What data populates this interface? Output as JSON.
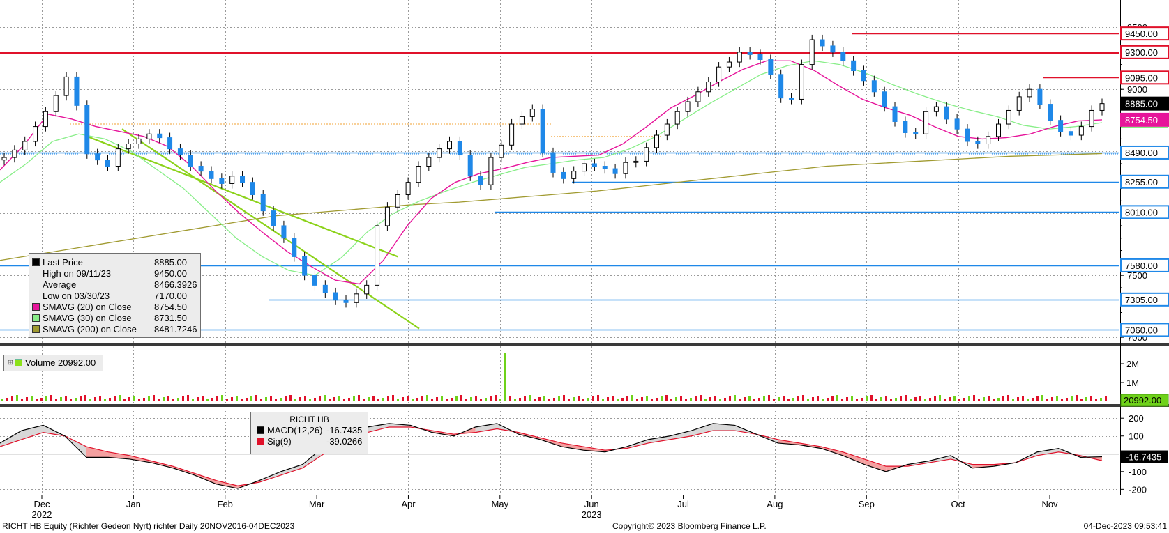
{
  "chart_data": {
    "type": "line",
    "title": "RICHT HB",
    "x_months": [
      "Dec",
      "Jan",
      "Feb",
      "Mar",
      "Apr",
      "May",
      "Jun",
      "Jul",
      "Aug",
      "Sep",
      "Oct",
      "Nov"
    ],
    "x_years": [
      "2022",
      "2023"
    ],
    "price": {
      "ylim": [
        6950,
        9580
      ],
      "yticks": [
        "9500",
        "9000",
        "8500",
        "8000",
        "7500",
        "7000"
      ],
      "last_price": 8885.0,
      "high": {
        "label": "High on 09/11/23",
        "value": 9450.0
      },
      "low": {
        "label": "Low on 03/30/23",
        "value": 7170.0
      },
      "average": 8466.3926,
      "closes": [
        8450,
        8510,
        8580,
        8700,
        8820,
        8950,
        9100,
        8870,
        8480,
        8430,
        8380,
        8520,
        8560,
        8600,
        8640,
        8610,
        8520,
        8470,
        8380,
        8340,
        8280,
        8240,
        8300,
        8250,
        8150,
        8020,
        7900,
        7800,
        7650,
        7500,
        7420,
        7360,
        7300,
        7280,
        7350,
        7420,
        7900,
        8050,
        8150,
        8250,
        8380,
        8450,
        8520,
        8580,
        8470,
        8300,
        8230,
        8450,
        8550,
        8720,
        8780,
        8840,
        8490,
        8330,
        8280,
        8340,
        8400,
        8380,
        8360,
        8320,
        8410,
        8420,
        8530,
        8630,
        8720,
        8820,
        8900,
        8980,
        9060,
        9180,
        9220,
        9300,
        9280,
        9240,
        9120,
        8930,
        8920,
        9200,
        9400,
        9350,
        9300,
        9230,
        9150,
        9070,
        8980,
        8860,
        8740,
        8650,
        8640,
        8820,
        8860,
        8760,
        8680,
        8580,
        8560,
        8620,
        8720,
        8830,
        8940,
        9000,
        8880,
        8750,
        8660,
        8630,
        8700,
        8830,
        8885
      ],
      "sma20": [
        8350,
        8550,
        8800,
        8760,
        8700,
        8660,
        8620,
        8540,
        8380,
        8180,
        8000,
        7840,
        7690,
        7570,
        7460,
        7430,
        7620,
        7900,
        8120,
        8250,
        8320,
        8360,
        8410,
        8450,
        8460,
        8470,
        8560,
        8700,
        8850,
        8950,
        9060,
        9160,
        9230,
        9230,
        9150,
        9030,
        8920,
        8850,
        8790,
        8700,
        8620,
        8600,
        8610,
        8640,
        8700,
        8745,
        8754.5
      ],
      "sma30": [
        8250,
        8400,
        8580,
        8640,
        8600,
        8500,
        8350,
        8200,
        8000,
        7800,
        7650,
        7540,
        7500,
        7640,
        7850,
        8000,
        8100,
        8180,
        8250,
        8310,
        8370,
        8400,
        8430,
        8450,
        8520,
        8620,
        8750,
        8880,
        9000,
        9120,
        9190,
        9230,
        9200,
        9130,
        9040,
        8960,
        8890,
        8830,
        8780,
        8710,
        8680,
        8700,
        8731.5
      ],
      "sma200": [
        7620,
        7680,
        7740,
        7800,
        7860,
        7920,
        7980,
        8010,
        8040,
        8070,
        8090,
        8120,
        8150,
        8180,
        8220,
        8260,
        8300,
        8340,
        8380,
        8400,
        8420,
        8440,
        8460,
        8470,
        8481.7
      ],
      "trendline_a": [
        [
          0,
          8620
        ],
        [
          1,
          7720
        ],
        [
          1.1,
          7650
        ]
      ],
      "trendline_b": [
        [
          0,
          8680
        ],
        [
          1,
          7330
        ],
        [
          1.2,
          7070
        ]
      ],
      "levels": [
        "9450.00",
        "9300.00",
        "9095.00",
        "8885.00",
        "8754.50",
        "8490.00",
        "8255.00",
        "8010.00",
        "7580.00",
        "7305.00",
        "7060.00"
      ],
      "colors": {
        "last": "#000000",
        "resistance": "#e0112a",
        "support": "#1f88e8",
        "sma20": "#e6149a",
        "sma30": "#88ee88",
        "sma200": "#a09a30",
        "trend": "#8cd21a",
        "up_candle": "#ffffff",
        "down_candle": "#1f88e8"
      }
    },
    "volume": {
      "label": "Volume",
      "value": "20992.00",
      "yticks": [
        "2M",
        "1M"
      ],
      "spike_month_index": 5
    },
    "macd": {
      "yticks": [
        "200",
        "100",
        "-100",
        "-200"
      ],
      "last": "-16.7435",
      "macd_line": [
        60,
        130,
        160,
        100,
        -20,
        -20,
        -30,
        -50,
        -80,
        -120,
        -170,
        -195,
        -150,
        -100,
        -60,
        40,
        110,
        150,
        170,
        160,
        120,
        100,
        150,
        170,
        110,
        80,
        40,
        20,
        10,
        40,
        80,
        100,
        130,
        170,
        160,
        110,
        60,
        50,
        30,
        -10,
        -60,
        -100,
        -60,
        -40,
        -10,
        -80,
        -70,
        -50,
        10,
        30,
        -20,
        -16.7
      ],
      "signal_line": [
        40,
        80,
        120,
        100,
        40,
        10,
        -10,
        -40,
        -70,
        -110,
        -150,
        -180,
        -160,
        -120,
        -80,
        0,
        70,
        120,
        150,
        150,
        130,
        110,
        120,
        140,
        120,
        90,
        60,
        40,
        20,
        30,
        60,
        80,
        100,
        130,
        130,
        110,
        80,
        60,
        40,
        10,
        -30,
        -70,
        -70,
        -50,
        -30,
        -60,
        -60,
        -50,
        -10,
        10,
        -10,
        -39.0
      ],
      "macd_label": "MACD(12,26)",
      "macd_value": "-16.7435",
      "sig_label": "Sig(9)",
      "sig_value": "-39.0266"
    }
  },
  "legend": {
    "rows": [
      {
        "name": "Last Price",
        "value": "8885.00",
        "color": "#000000"
      },
      {
        "name": "High on 09/11/23",
        "value": "9450.00",
        "color": "none"
      },
      {
        "name": "Average",
        "value": "8466.3926",
        "color": "none"
      },
      {
        "name": "Low on 03/30/23",
        "value": "7170.00",
        "color": "none"
      },
      {
        "name": "SMAVG (20)  on Close",
        "value": "8754.50",
        "color": "#e6149a"
      },
      {
        "name": "SMAVG (30)  on Close",
        "value": "8731.50",
        "color": "#88ee88"
      },
      {
        "name": "SMAVG (200)  on Close",
        "value": "8481.7246",
        "color": "#a09a30"
      }
    ]
  },
  "volume_legend": {
    "label": "Volume",
    "value": "20992.00"
  },
  "macd_legend": {
    "title": "RICHT HB"
  },
  "footer": {
    "left": "RICHT HB Equity (Richter Gedeon Nyrt) richter  Daily 20NOV2016-04DEC2023",
    "center": "Copyright© 2023 Bloomberg Finance L.P.",
    "right": "04-Dec-2023 09:53:41"
  }
}
